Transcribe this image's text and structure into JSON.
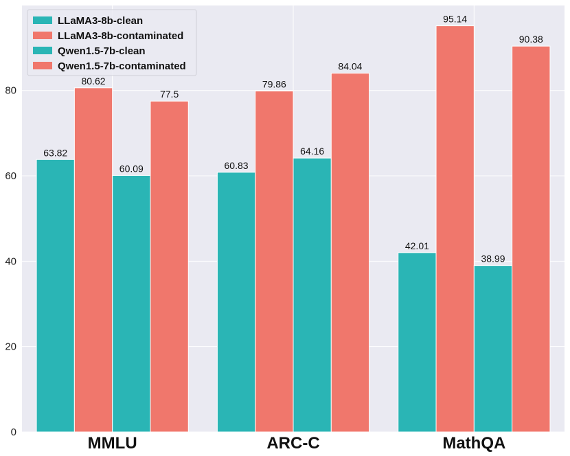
{
  "chart_data": {
    "type": "bar",
    "categories": [
      "MMLU",
      "ARC-C",
      "MathQA"
    ],
    "series": [
      {
        "name": "LLaMA3-8b-clean",
        "values": [
          63.82,
          60.83,
          42.01
        ],
        "color": "#2ab5b5"
      },
      {
        "name": "LLaMA3-8b-contaminated",
        "values": [
          80.62,
          79.86,
          95.14
        ],
        "color": "#f0776c"
      },
      {
        "name": "Qwen1.5-7b-clean",
        "values": [
          60.09,
          64.16,
          38.99
        ],
        "color": "#2ab5b5"
      },
      {
        "name": "Qwen1.5-7b-contaminated",
        "values": [
          77.5,
          84.04,
          90.38
        ],
        "color": "#f0776c"
      }
    ],
    "data_labels": [
      [
        "63.82",
        "60.83",
        "42.01"
      ],
      [
        "80.62",
        "79.86",
        "95.14"
      ],
      [
        "60.09",
        "64.16",
        "38.99"
      ],
      [
        "77.5",
        "84.04",
        "90.38"
      ]
    ],
    "yticks": [
      0,
      20,
      40,
      60,
      80
    ],
    "ylim": [
      0,
      99.9
    ],
    "title": "",
    "xlabel": "",
    "ylabel": "",
    "grid": true,
    "legend_position": "top-left",
    "background_color": "#eaeaf2",
    "grid_color": "#ffffff"
  }
}
